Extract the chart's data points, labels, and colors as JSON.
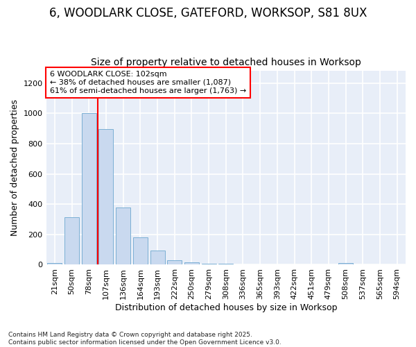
{
  "title1": "6, WOODLARK CLOSE, GATEFORD, WORKSOP, S81 8UX",
  "title2": "Size of property relative to detached houses in Worksop",
  "xlabel": "Distribution of detached houses by size in Worksop",
  "ylabel": "Number of detached properties",
  "categories": [
    "21sqm",
    "50sqm",
    "78sqm",
    "107sqm",
    "136sqm",
    "164sqm",
    "193sqm",
    "222sqm",
    "250sqm",
    "279sqm",
    "308sqm",
    "336sqm",
    "365sqm",
    "393sqm",
    "422sqm",
    "451sqm",
    "479sqm",
    "508sqm",
    "537sqm",
    "565sqm",
    "594sqm"
  ],
  "values": [
    10,
    315,
    1000,
    895,
    380,
    180,
    95,
    28,
    14,
    8,
    5,
    3,
    2,
    2,
    1,
    1,
    1,
    10,
    1,
    1,
    1
  ],
  "bar_color": "#c9d9ef",
  "bar_edge_color": "#7bafd4",
  "vline_x_idx": 2.5,
  "vline_color": "red",
  "annotation_text": "6 WOODLARK CLOSE: 102sqm\n← 38% of detached houses are smaller (1,087)\n61% of semi-detached houses are larger (1,763) →",
  "annotation_box_color": "white",
  "annotation_box_edge": "red",
  "footnote1": "Contains HM Land Registry data © Crown copyright and database right 2025.",
  "footnote2": "Contains public sector information licensed under the Open Government Licence v3.0.",
  "bg_color": "#ffffff",
  "plot_bg_color": "#e8eef8",
  "ylim": [
    0,
    1280
  ],
  "yticks": [
    0,
    200,
    400,
    600,
    800,
    1000,
    1200
  ],
  "title_fontsize": 12,
  "subtitle_fontsize": 10,
  "axis_label_fontsize": 9,
  "tick_fontsize": 8,
  "annot_fontsize": 8
}
